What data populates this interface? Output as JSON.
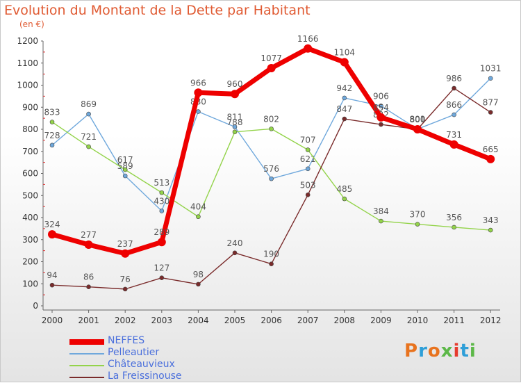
{
  "header": {
    "title": "Evolution du Montant de la Dette par Habitant",
    "unit": "(en €)"
  },
  "logo": {
    "text": "Proxiti",
    "colors": [
      "#e8731e",
      "#2f9fd8",
      "#e8731e",
      "#5cb848",
      "#e63b2e",
      "#2f9fd8",
      "#5cb848"
    ]
  },
  "chart_data": {
    "type": "line",
    "x": [
      "2000",
      "2001",
      "2002",
      "2003",
      "2004",
      "2005",
      "2006",
      "2007",
      "2008",
      "2009",
      "2010",
      "2011",
      "2012"
    ],
    "ylim": [
      0,
      1200
    ],
    "yticks": [
      0,
      100,
      200,
      300,
      400,
      500,
      600,
      700,
      800,
      900,
      1000,
      1100,
      1200
    ],
    "grid": false,
    "legend_position": "bottom-left",
    "series": [
      {
        "name": "NEFFES",
        "color": "#ee0000",
        "values": [
          324,
          277,
          237,
          289,
          966,
          960,
          1077,
          1166,
          1104,
          854,
          800,
          731,
          665
        ],
        "labels": [
          "324",
          "277",
          "237",
          "289",
          "966",
          "960",
          "1077",
          "1166",
          "1104",
          "854",
          "800",
          "731",
          "665"
        ]
      },
      {
        "name": "Pelleautier",
        "color": "#6fa8dc",
        "values": [
          728,
          869,
          589,
          430,
          880,
          811,
          576,
          621,
          942,
          906,
          801,
          866,
          1031
        ],
        "labels": [
          "728",
          "869",
          "589",
          "430",
          "880",
          "811",
          "576",
          "621",
          "942",
          "906",
          "801",
          "866",
          "1031"
        ]
      },
      {
        "name": "Châteauvieux",
        "color": "#93d34a",
        "values": [
          833,
          721,
          617,
          513,
          404,
          788,
          802,
          707,
          485,
          384,
          370,
          356,
          343
        ],
        "labels": [
          "833",
          "721",
          "617",
          "513",
          "404",
          "788",
          "802",
          "707",
          "485",
          "384",
          "370",
          "356",
          "343"
        ]
      },
      {
        "name": "La Freissinouse",
        "color": "#7a2b2b",
        "values": [
          94,
          86,
          76,
          127,
          98,
          240,
          190,
          503,
          847,
          822,
          800,
          986,
          877
        ],
        "labels": [
          "94",
          "86",
          "76",
          "127",
          "98",
          "240",
          "190",
          "503",
          "847",
          "822",
          "800",
          "986",
          "877"
        ]
      }
    ]
  }
}
